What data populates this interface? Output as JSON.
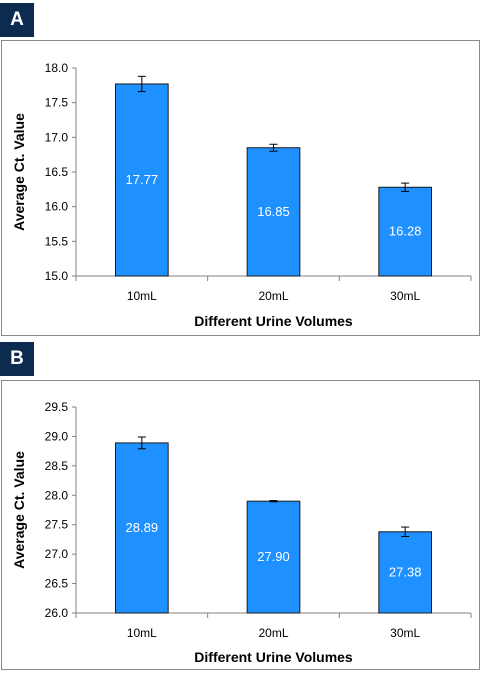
{
  "panels": [
    {
      "tag": "A",
      "chart_data": {
        "type": "bar",
        "categories": [
          "10mL",
          "20mL",
          "30mL"
        ],
        "values": [
          17.77,
          16.85,
          16.28
        ],
        "value_labels": [
          "17.77",
          "16.85",
          "16.28"
        ],
        "error": [
          0.11,
          0.05,
          0.06
        ],
        "xlabel": "Different Urine Volumes",
        "ylabel": "Average Ct. Value",
        "ylim": [
          15.0,
          18.0
        ],
        "yticks": [
          15.0,
          15.5,
          16.0,
          16.5,
          17.0,
          17.5,
          18.0
        ],
        "ytick_labels": [
          "15.0",
          "15.5",
          "16.0",
          "16.5",
          "17.0",
          "17.5",
          "18.0"
        ],
        "grid": false,
        "legend": "none",
        "bar_color": "#1e90ff"
      }
    },
    {
      "tag": "B",
      "chart_data": {
        "type": "bar",
        "categories": [
          "10mL",
          "20mL",
          "30mL"
        ],
        "values": [
          28.89,
          27.9,
          27.38
        ],
        "value_labels": [
          "28.89",
          "27.90",
          "27.38"
        ],
        "error": [
          0.1,
          0.01,
          0.08
        ],
        "xlabel": "Different Urine Volumes",
        "ylabel": "Average Ct. Value",
        "ylim": [
          26.0,
          29.5
        ],
        "yticks": [
          26.0,
          26.5,
          27.0,
          27.5,
          28.0,
          28.5,
          29.0,
          29.5
        ],
        "ytick_labels": [
          "26.0",
          "26.5",
          "27.0",
          "27.5",
          "28.0",
          "28.5",
          "29.0",
          "29.5"
        ],
        "grid": false,
        "legend": "none",
        "bar_color": "#1e90ff"
      }
    }
  ]
}
